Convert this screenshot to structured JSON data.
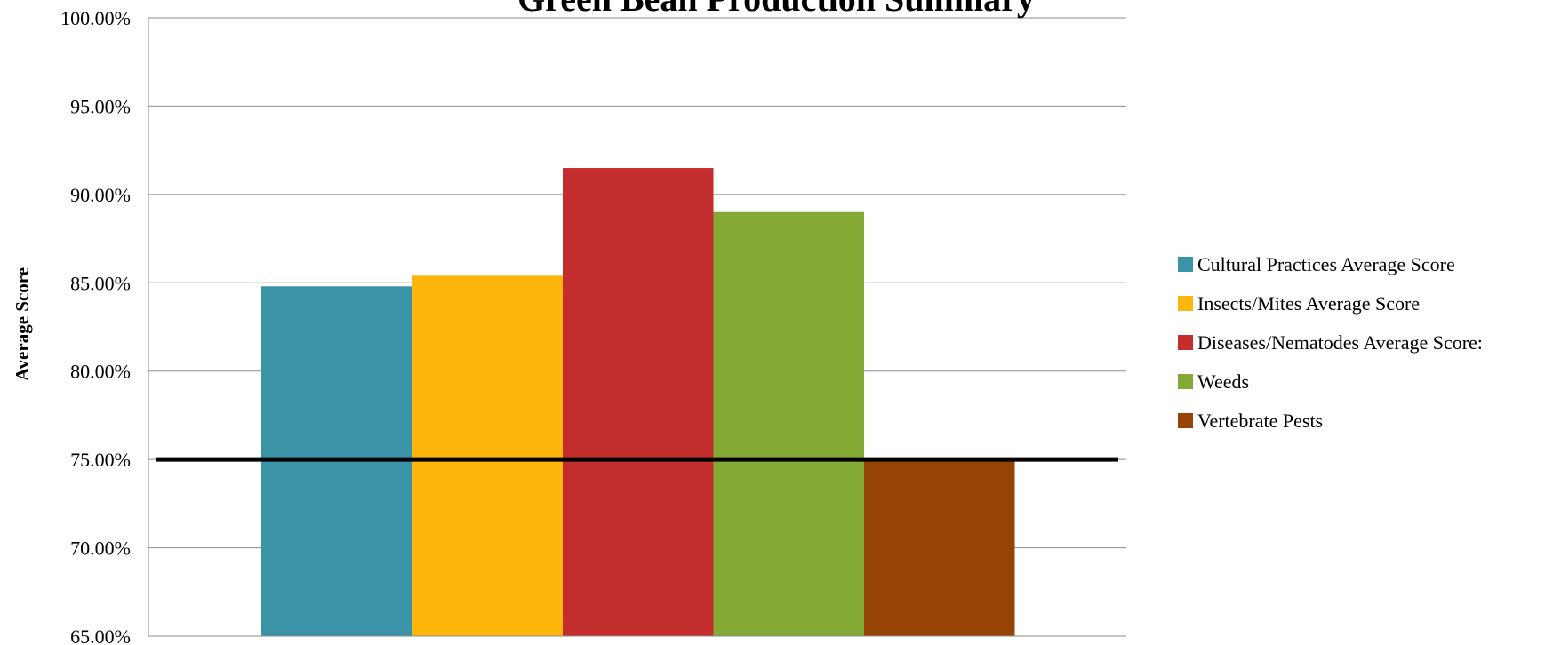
{
  "chart_data": {
    "type": "bar",
    "title": "Green Bean Production Summary",
    "xlabel": "",
    "ylabel": "Average Score",
    "ylim": [
      65,
      100
    ],
    "yticks": [
      "65.00%",
      "70.00%",
      "75.00%",
      "80.00%",
      "85.00%",
      "90.00%",
      "95.00%",
      "100.00%"
    ],
    "grid": true,
    "legend_position": "right",
    "series": [
      {
        "name": "Cultural Practices Average Score",
        "value": 84.8,
        "color": "#3B93A8"
      },
      {
        "name": "Insects/Mites Average Score",
        "value": 85.4,
        "color": "#FDB60C"
      },
      {
        "name": "Diseases/Nematodes Average Score:",
        "value": 91.5,
        "color": "#C32D2E"
      },
      {
        "name": "Weeds",
        "value": 89.0,
        "color": "#85A935"
      },
      {
        "name": "Vertebrate Pests",
        "value": 75.0,
        "color": "#984306"
      }
    ],
    "reference_line": {
      "value": 75.0,
      "color": "#000000"
    }
  }
}
